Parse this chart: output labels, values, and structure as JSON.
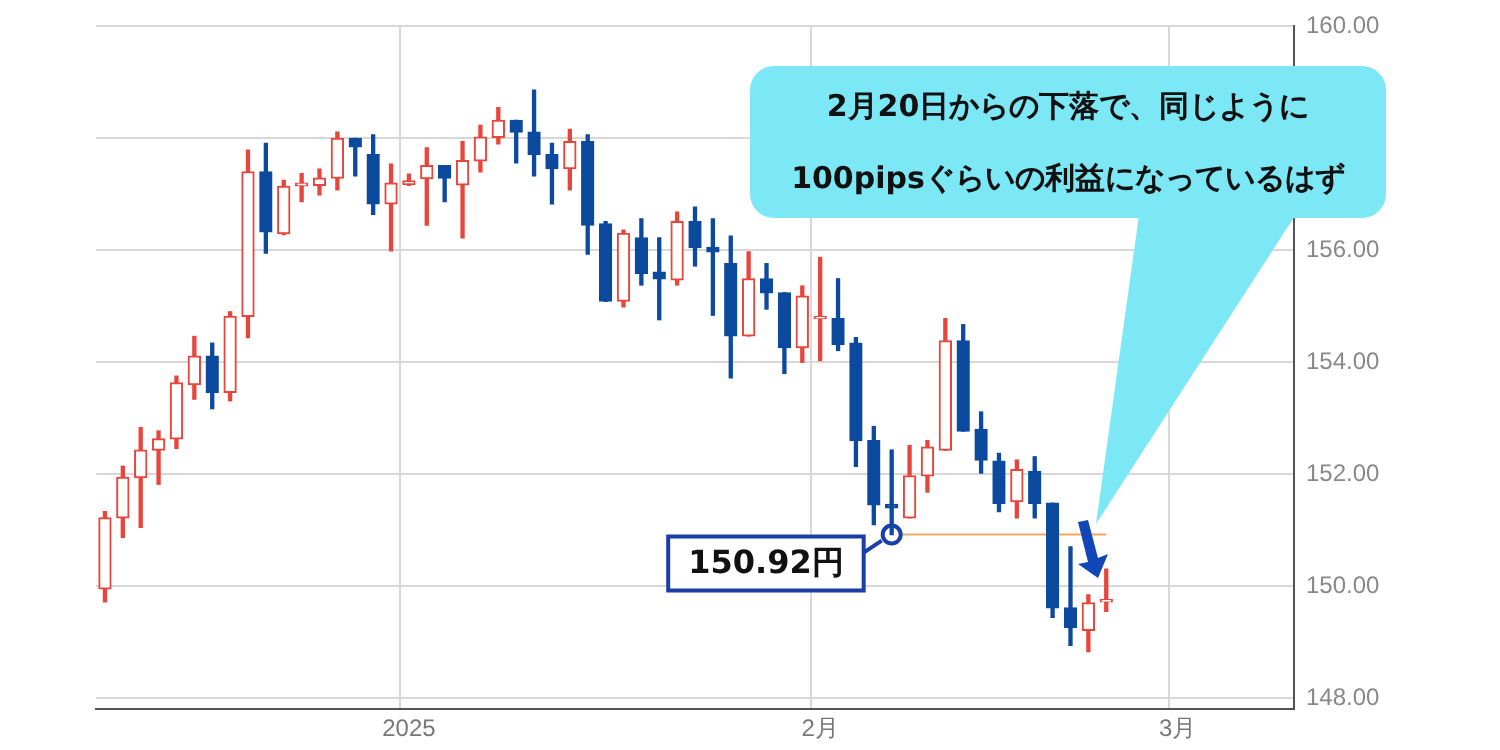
{
  "chart_data": {
    "type": "candlestick",
    "categories": [
      null,
      null,
      null,
      null,
      null,
      null,
      null,
      null,
      null,
      null,
      null,
      null,
      null,
      null,
      null,
      null,
      null,
      "2025",
      null,
      null,
      null,
      null,
      null,
      null,
      null,
      null,
      null,
      null,
      null,
      null,
      null,
      null,
      null,
      null,
      null,
      null,
      null,
      null,
      null,
      null,
      "2月",
      null,
      null,
      null,
      null,
      null,
      null,
      null,
      null,
      null,
      null,
      null,
      null,
      null,
      null,
      null,
      null,
      null,
      null,
      null,
      "3月",
      null,
      null,
      null,
      null,
      null,
      null
    ],
    "ohlc": [
      [
        149.95,
        151.33,
        149.72,
        151.22
      ],
      [
        151.22,
        152.14,
        150.87,
        151.94
      ],
      [
        151.94,
        152.83,
        151.05,
        152.43
      ],
      [
        152.43,
        152.77,
        151.82,
        152.63
      ],
      [
        152.63,
        153.75,
        152.46,
        153.63
      ],
      [
        153.6,
        154.46,
        153.34,
        154.11
      ],
      [
        154.11,
        154.34,
        153.17,
        153.46
      ],
      [
        153.46,
        154.9,
        153.31,
        154.82
      ],
      [
        154.82,
        157.79,
        154.44,
        157.4
      ],
      [
        157.4,
        157.91,
        155.95,
        156.33
      ],
      [
        156.3,
        157.25,
        156.28,
        157.14
      ],
      [
        157.15,
        157.37,
        156.87,
        157.2
      ],
      [
        157.16,
        157.45,
        156.99,
        157.29
      ],
      [
        157.29,
        158.11,
        157.08,
        158.0
      ],
      [
        158.0,
        158.0,
        157.33,
        157.85
      ],
      [
        157.71,
        158.06,
        156.64,
        156.83
      ],
      [
        156.83,
        157.54,
        155.99,
        157.2
      ],
      [
        157.18,
        157.36,
        157.16,
        157.24
      ],
      [
        157.28,
        157.83,
        156.45,
        157.51
      ],
      [
        157.51,
        157.51,
        156.87,
        157.29
      ],
      [
        157.17,
        157.94,
        156.22,
        157.6
      ],
      [
        157.6,
        158.23,
        157.4,
        158.02
      ],
      [
        158.02,
        158.55,
        157.9,
        158.32
      ],
      [
        158.32,
        158.32,
        157.56,
        158.11
      ],
      [
        158.11,
        158.86,
        157.33,
        157.71
      ],
      [
        157.71,
        157.91,
        156.83,
        157.46
      ],
      [
        157.46,
        158.16,
        157.08,
        157.94
      ],
      [
        157.94,
        158.06,
        155.93,
        156.45
      ],
      [
        156.47,
        156.51,
        155.09,
        155.09
      ],
      [
        155.09,
        156.36,
        154.99,
        156.3
      ],
      [
        156.22,
        156.56,
        155.38,
        155.59
      ],
      [
        155.61,
        156.22,
        154.76,
        155.49
      ],
      [
        155.47,
        156.68,
        155.38,
        156.51
      ],
      [
        156.51,
        156.77,
        155.72,
        156.05
      ],
      [
        156.05,
        156.56,
        154.84,
        155.97
      ],
      [
        155.76,
        156.25,
        153.72,
        154.47
      ],
      [
        154.47,
        155.97,
        154.47,
        155.49
      ],
      [
        155.49,
        155.76,
        154.95,
        155.24
      ],
      [
        155.24,
        155.24,
        153.8,
        154.26
      ],
      [
        154.26,
        155.36,
        154.0,
        155.18
      ],
      [
        154.78,
        155.87,
        154.03,
        154.8
      ],
      [
        154.78,
        155.49,
        154.21,
        154.32
      ],
      [
        154.34,
        154.44,
        152.14,
        152.6
      ],
      [
        152.6,
        152.85,
        151.1,
        151.45
      ],
      [
        151.46,
        152.43,
        150.92,
        151.4
      ],
      [
        151.22,
        152.51,
        151.22,
        151.97
      ],
      [
        151.97,
        152.6,
        151.68,
        152.48
      ],
      [
        152.43,
        154.78,
        152.43,
        154.38
      ],
      [
        154.38,
        154.67,
        152.77,
        152.77
      ],
      [
        152.8,
        153.11,
        152.02,
        152.25
      ],
      [
        152.23,
        152.37,
        151.33,
        151.48
      ],
      [
        151.51,
        152.25,
        151.22,
        152.08
      ],
      [
        152.05,
        152.31,
        151.22,
        151.48
      ],
      [
        151.48,
        151.48,
        149.44,
        149.61
      ],
      [
        149.61,
        150.7,
        148.94,
        149.26
      ],
      [
        149.21,
        149.84,
        148.83,
        149.7
      ],
      [
        149.72,
        150.3,
        149.55,
        149.75
      ],
      null,
      null,
      null,
      null,
      null,
      null,
      null,
      null,
      null,
      null
    ],
    "ylim": [
      147.8,
      160
    ],
    "yticks": [
      {
        "value": 148,
        "label": "148.00"
      },
      {
        "value": 150,
        "label": "150.00"
      },
      {
        "value": 152,
        "label": "152.00"
      },
      {
        "value": 154,
        "label": "154.00"
      },
      {
        "value": 156,
        "label": "156.00"
      },
      {
        "value": 158,
        "label": null
      },
      {
        "value": 160,
        "label": "160.00"
      }
    ],
    "grid": true,
    "legend": false,
    "ref_lines": [
      {
        "axis": "y",
        "value": 150.92,
        "label": "150.92円",
        "color": "#f0a860"
      }
    ],
    "annotations": [
      "2月20日からの下落で、同じように\n100pipsぐらいの利益になっているはず"
    ]
  }
}
